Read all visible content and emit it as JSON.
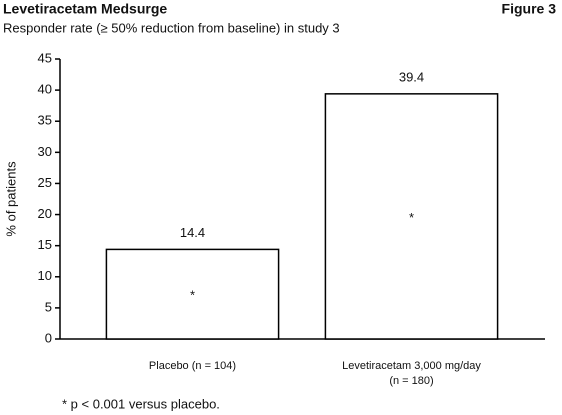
{
  "chart_data": {
    "type": "bar",
    "title": "Levetiracetam Medsurge",
    "figure_label": "Figure 3",
    "subtitle": "Responder rate (≥ 50% reduction from baseline) in study 3",
    "y_label": "% of patients",
    "categories": [
      [
        "Placebo (n = 104)"
      ],
      [
        "Levetiracetam 3,000 mg/day",
        "(n = 180)"
      ]
    ],
    "values": [
      14.4,
      39.4
    ],
    "bar_annotations": [
      "*",
      "*"
    ],
    "footnote": "* p < 0.001 versus placebo.",
    "color": "#ffffff",
    "ylim": [
      0,
      45
    ],
    "yticks": [
      0,
      5,
      10,
      15,
      20,
      25,
      30,
      35,
      40,
      45
    ],
    "grid": false
  }
}
